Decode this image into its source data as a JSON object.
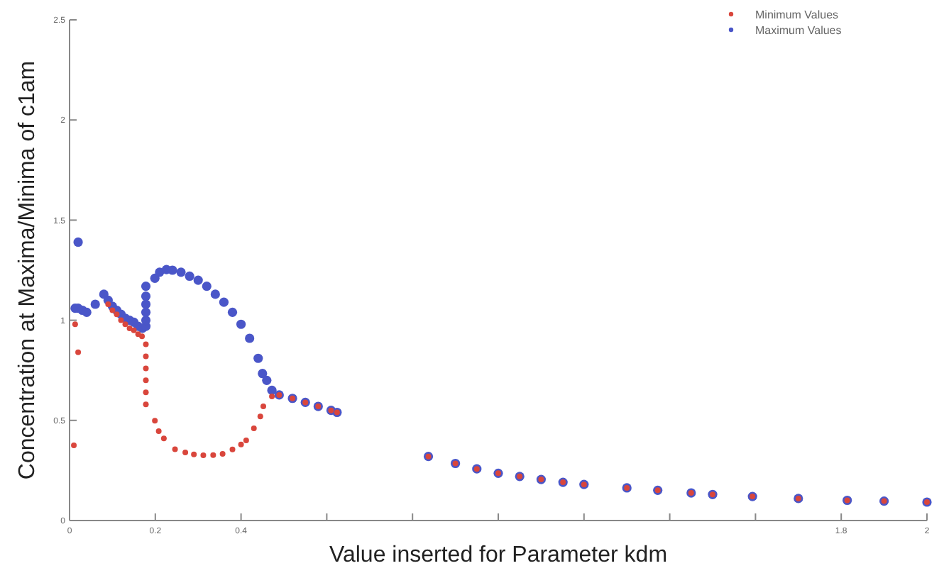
{
  "chart_data": {
    "type": "scatter",
    "xlabel": "Value inserted for Parameter kdm",
    "ylabel": "Concentration at Maxima/Minima of c1am",
    "xlim": [
      0,
      2
    ],
    "ylim": [
      0,
      2.5
    ],
    "xticks": [
      0,
      0.2,
      {
        "value": 0.4,
        "label": "0.4"
      },
      {
        "value": 0.6,
        "label": null
      },
      {
        "value": 0.8,
        "label": null
      },
      {
        "value": 1,
        "label": null
      },
      {
        "value": 1.2,
        "label": null
      },
      {
        "value": 1.4,
        "label": null
      },
      {
        "value": 1.6,
        "label": null
      },
      1.8,
      2
    ],
    "yticks": [
      0,
      0.5,
      1,
      1.5,
      2,
      2.5
    ],
    "grid": false,
    "legend": "top right",
    "marker": "circle",
    "series": [
      {
        "name": "Minimum Values",
        "color": "#d9463c",
        "x": [
          0.01,
          0.013,
          0.02,
          0.09,
          0.1,
          0.11,
          0.12,
          0.13,
          0.14,
          0.15,
          0.16,
          0.169,
          0.178,
          0.178,
          0.178,
          0.178,
          0.178,
          0.178,
          0.199,
          0.208,
          0.22,
          0.246,
          0.27,
          0.29,
          0.312,
          0.335,
          0.357,
          0.38,
          0.4,
          0.412,
          0.43,
          0.445,
          0.452,
          0.472,
          0.489,
          0.52,
          0.55,
          0.58,
          0.61,
          0.624,
          0.837,
          0.9,
          0.95,
          1.0,
          1.05,
          1.1,
          1.151,
          1.2,
          1.3,
          1.372,
          1.45,
          1.5,
          1.593,
          1.7,
          1.814,
          1.9,
          2.0
        ],
        "values": [
          0.375,
          0.98,
          0.84,
          1.08,
          1.05,
          1.03,
          1.0,
          0.98,
          0.96,
          0.95,
          0.93,
          0.92,
          0.88,
          0.82,
          0.76,
          0.7,
          0.64,
          0.58,
          0.498,
          0.446,
          0.41,
          0.356,
          0.34,
          0.33,
          0.326,
          0.327,
          0.333,
          0.355,
          0.38,
          0.4,
          0.46,
          0.52,
          0.57,
          0.62,
          0.627,
          0.61,
          0.59,
          0.57,
          0.55,
          0.54,
          0.32,
          0.285,
          0.258,
          0.236,
          0.22,
          0.205,
          0.191,
          0.18,
          0.163,
          0.151,
          0.138,
          0.13,
          0.12,
          0.11,
          0.101,
          0.097,
          0.092
        ]
      },
      {
        "name": "Maximum Values",
        "color": "#4a56c8",
        "x": [
          0.013,
          0.02,
          0.02,
          0.03,
          0.04,
          0.06,
          0.08,
          0.09,
          0.1,
          0.11,
          0.12,
          0.13,
          0.14,
          0.15,
          0.16,
          0.17,
          0.178,
          0.178,
          0.178,
          0.178,
          0.178,
          0.178,
          0.199,
          0.21,
          0.226,
          0.24,
          0.26,
          0.28,
          0.3,
          0.32,
          0.34,
          0.36,
          0.38,
          0.4,
          0.42,
          0.44,
          0.45,
          0.46,
          0.472,
          0.489,
          0.52,
          0.55,
          0.58,
          0.61,
          0.624,
          0.837,
          0.9,
          0.95,
          1.0,
          1.05,
          1.1,
          1.151,
          1.2,
          1.3,
          1.372,
          1.45,
          1.5,
          1.593,
          1.7,
          1.814,
          1.9,
          2.0
        ],
        "values": [
          1.06,
          1.06,
          1.39,
          1.05,
          1.04,
          1.08,
          1.13,
          1.1,
          1.07,
          1.05,
          1.03,
          1.01,
          1.0,
          0.99,
          0.97,
          0.96,
          0.97,
          1.0,
          1.04,
          1.08,
          1.12,
          1.17,
          1.21,
          1.24,
          1.253,
          1.25,
          1.24,
          1.22,
          1.2,
          1.17,
          1.13,
          1.09,
          1.04,
          0.98,
          0.91,
          0.81,
          0.734,
          0.7,
          0.65,
          0.627,
          0.61,
          0.59,
          0.57,
          0.55,
          0.54,
          0.32,
          0.285,
          0.258,
          0.236,
          0.22,
          0.205,
          0.191,
          0.18,
          0.163,
          0.151,
          0.138,
          0.13,
          0.12,
          0.11,
          0.101,
          0.097,
          0.092
        ]
      }
    ]
  }
}
